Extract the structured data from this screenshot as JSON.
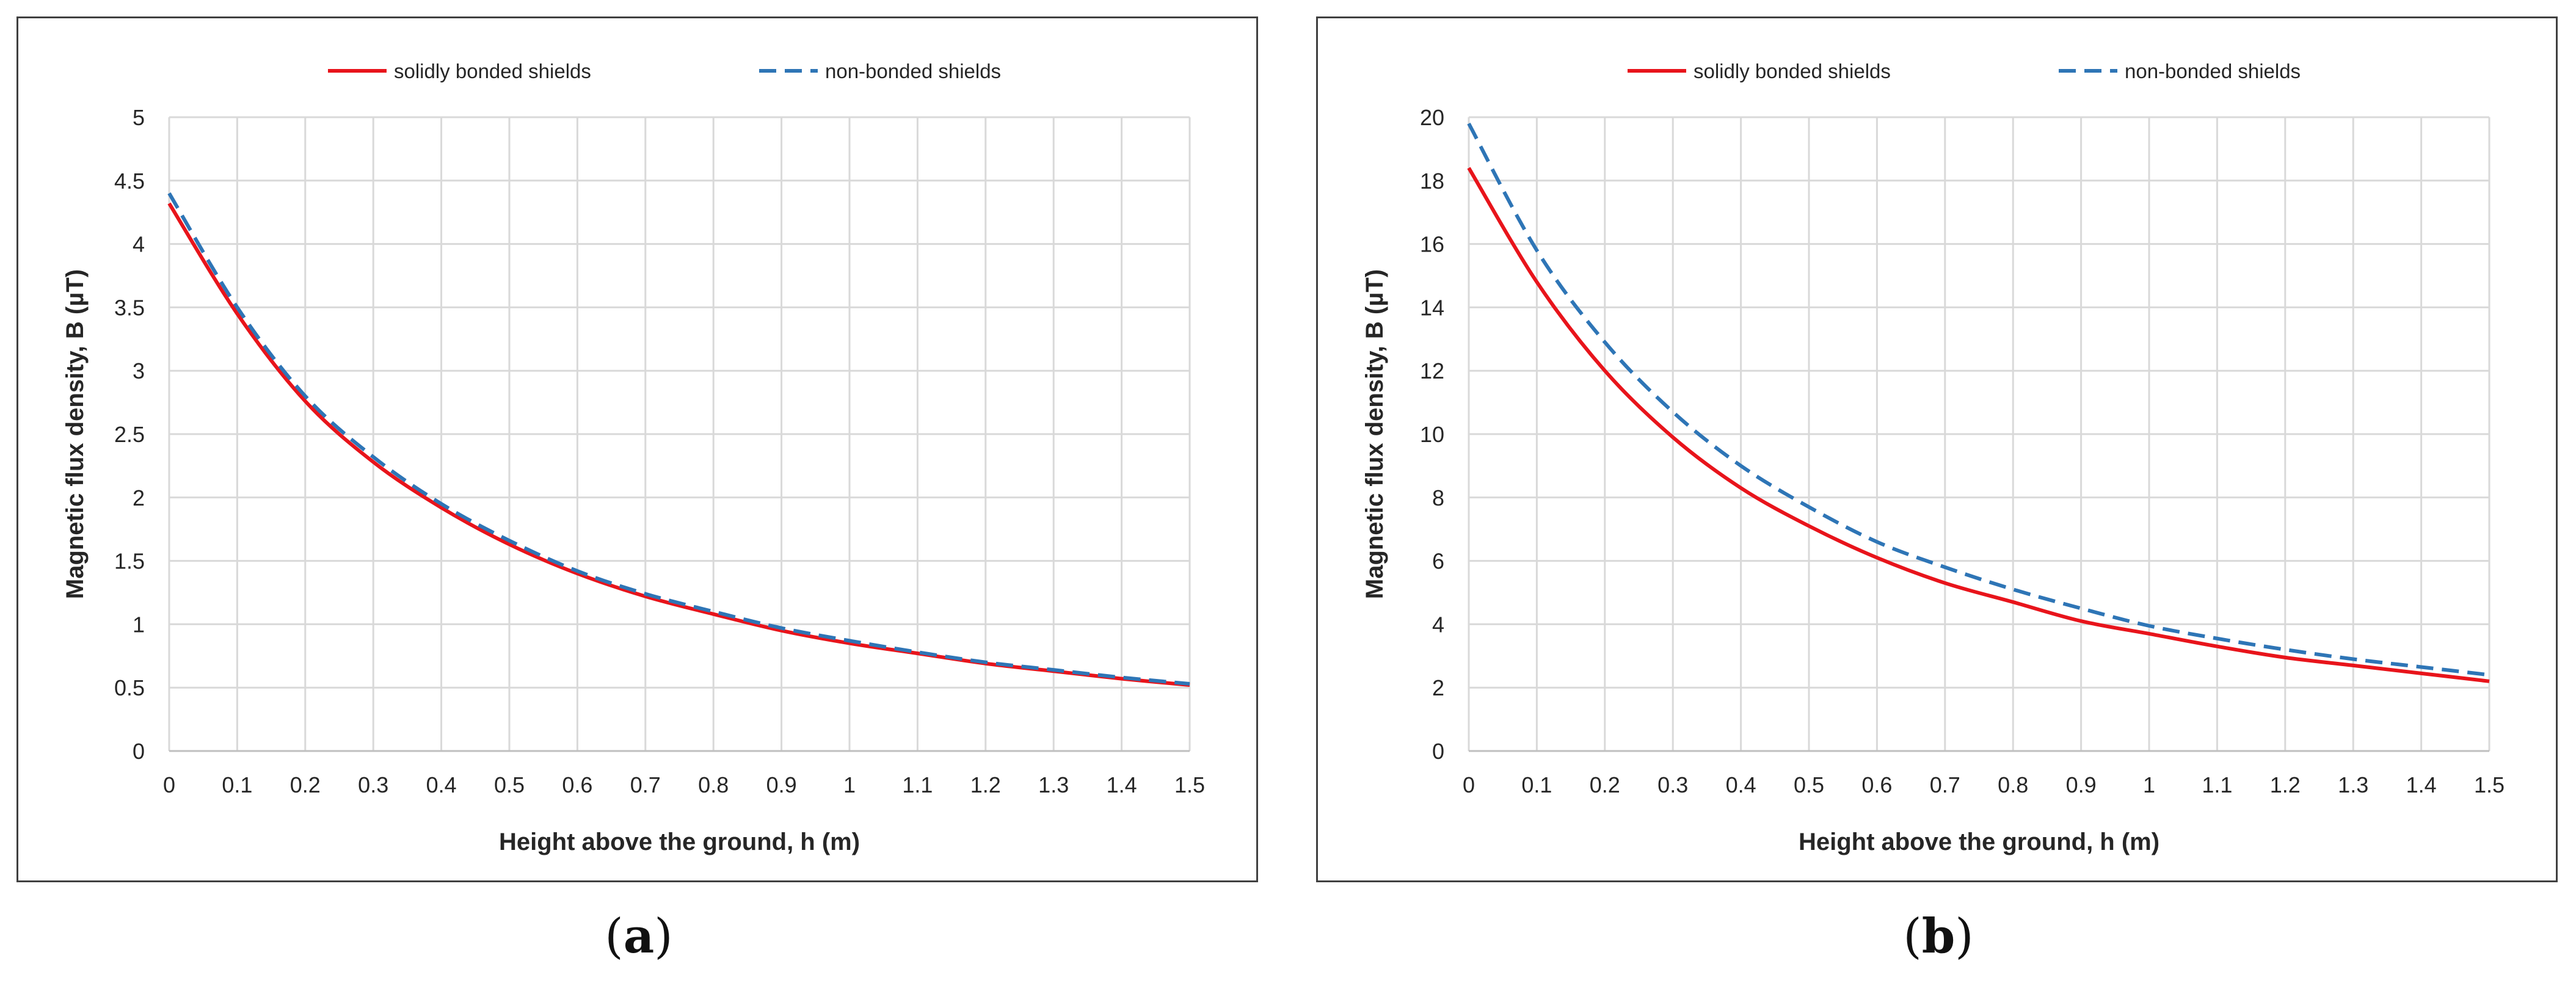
{
  "chart_data": [
    {
      "type": "line",
      "panel_label": "a",
      "xlabel": "Height above the ground, h (m)",
      "ylabel": "Magnetic flux density, B (µT)",
      "xlim": [
        0,
        1.5
      ],
      "ylim": [
        0,
        5
      ],
      "x_ticks": [
        "0",
        "0.1",
        "0.2",
        "0.3",
        "0.4",
        "0.5",
        "0.6",
        "0.7",
        "0.8",
        "0.9",
        "1",
        "1.1",
        "1.2",
        "1.3",
        "1.4",
        "1.5"
      ],
      "y_ticks": [
        "0",
        "0.5",
        "1",
        "1.5",
        "2",
        "2.5",
        "3",
        "3.5",
        "4",
        "4.5",
        "5"
      ],
      "grid": true,
      "legend_position": "top",
      "x": [
        0,
        0.1,
        0.2,
        0.3,
        0.4,
        0.5,
        0.6,
        0.7,
        0.8,
        0.9,
        1.0,
        1.1,
        1.2,
        1.3,
        1.4,
        1.5
      ],
      "series": [
        {
          "name": "solidly bonded shields",
          "style": "solid",
          "color": "#e8141b",
          "values": [
            4.32,
            3.45,
            2.76,
            2.28,
            1.92,
            1.63,
            1.4,
            1.22,
            1.08,
            0.95,
            0.85,
            0.77,
            0.69,
            0.63,
            0.57,
            0.52
          ]
        },
        {
          "name": "non-bonded shields",
          "style": "dashed",
          "color": "#2e75b6",
          "values": [
            4.4,
            3.5,
            2.8,
            2.32,
            1.95,
            1.66,
            1.42,
            1.24,
            1.1,
            0.97,
            0.87,
            0.78,
            0.7,
            0.64,
            0.58,
            0.53
          ]
        }
      ]
    },
    {
      "type": "line",
      "panel_label": "b",
      "xlabel": "Height above the ground, h (m)",
      "ylabel": "Magnetic flux density, B (µT)",
      "xlim": [
        0,
        1.5
      ],
      "ylim": [
        0,
        20
      ],
      "x_ticks": [
        "0",
        "0.1",
        "0.2",
        "0.3",
        "0.4",
        "0.5",
        "0.6",
        "0.7",
        "0.8",
        "0.9",
        "1",
        "1.1",
        "1.2",
        "1.3",
        "1.4",
        "1.5"
      ],
      "y_ticks": [
        "0",
        "2",
        "4",
        "6",
        "8",
        "10",
        "12",
        "14",
        "16",
        "18",
        "20"
      ],
      "grid": true,
      "legend_position": "top",
      "x": [
        0,
        0.1,
        0.2,
        0.3,
        0.4,
        0.5,
        0.6,
        0.7,
        0.8,
        0.9,
        1.0,
        1.1,
        1.2,
        1.3,
        1.4,
        1.5
      ],
      "series": [
        {
          "name": "solidly bonded shields",
          "style": "solid",
          "color": "#e8141b",
          "values": [
            18.4,
            14.8,
            12.0,
            9.9,
            8.3,
            7.1,
            6.1,
            5.3,
            4.7,
            4.1,
            3.7,
            3.3,
            2.95,
            2.7,
            2.45,
            2.2
          ]
        },
        {
          "name": "non-bonded shields",
          "style": "dashed",
          "color": "#2e75b6",
          "values": [
            19.8,
            15.8,
            12.9,
            10.7,
            9.0,
            7.7,
            6.6,
            5.8,
            5.1,
            4.5,
            3.95,
            3.55,
            3.2,
            2.9,
            2.65,
            2.4
          ]
        }
      ]
    }
  ],
  "captions": {
    "a": {
      "open": "(",
      "label": "a",
      "close": ")"
    },
    "b": {
      "open": "(",
      "label": "b",
      "close": ")"
    }
  }
}
